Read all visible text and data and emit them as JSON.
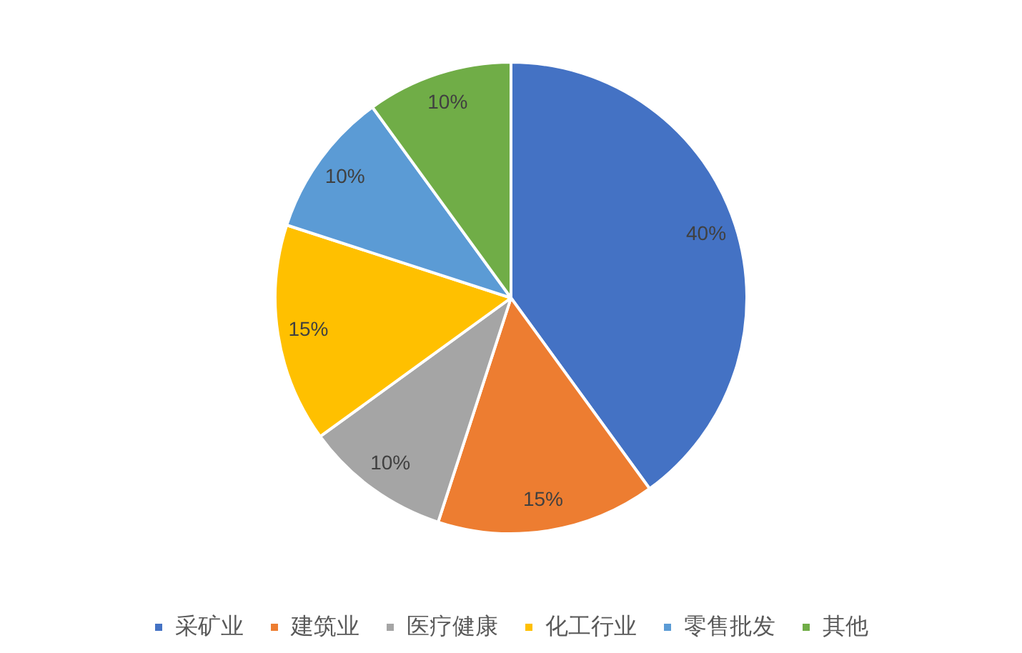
{
  "chart_data": {
    "type": "pie",
    "categories": [
      "采矿业",
      "建筑业",
      "医疗健康",
      "化工行业",
      "零售批发",
      "其他"
    ],
    "values": [
      40,
      15,
      10,
      15,
      10,
      10
    ],
    "colors": [
      "#4472c4",
      "#ed7d31",
      "#a5a5a5",
      "#ffc000",
      "#5b9bd5",
      "#70ad47"
    ],
    "value_labels": [
      "40%",
      "15%",
      "10%",
      "15%",
      "10%",
      "10%"
    ],
    "legend": "bottom"
  }
}
